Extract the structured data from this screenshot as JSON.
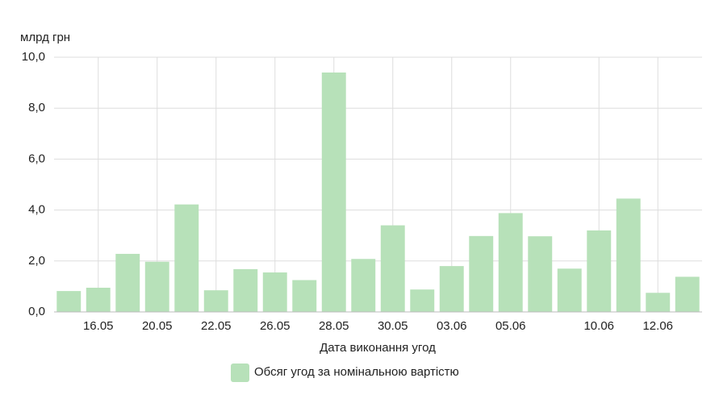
{
  "chart_data": {
    "type": "bar",
    "y_unit": "млрд грн",
    "x_label": "Дата виконання угод",
    "categories": [
      null,
      "16.05",
      null,
      "20.05",
      null,
      "22.05",
      null,
      "26.05",
      null,
      "28.05",
      null,
      "30.05",
      null,
      "03.06",
      null,
      "05.06",
      null,
      null,
      "10.06",
      null,
      "12.06",
      null
    ],
    "series": [
      {
        "name": "Обсяг угод за номінальною вартістю",
        "color": "#b7e1b9",
        "values": [
          0.82,
          0.95,
          2.28,
          1.97,
          4.22,
          0.85,
          1.68,
          1.55,
          1.25,
          9.4,
          2.08,
          3.4,
          0.88,
          1.8,
          2.98,
          3.88,
          2.97,
          1.7,
          3.2,
          4.45,
          0.75,
          1.38
        ]
      }
    ],
    "ylim": [
      0,
      10
    ],
    "yticks": [
      {
        "value": 0,
        "label": "0,0"
      },
      {
        "value": 2,
        "label": "2,0"
      },
      {
        "value": 4,
        "label": "4,0"
      },
      {
        "value": 6,
        "label": "6,0"
      },
      {
        "value": 8,
        "label": "8,0"
      },
      {
        "value": 10,
        "label": "10,0"
      }
    ],
    "grid": true
  }
}
